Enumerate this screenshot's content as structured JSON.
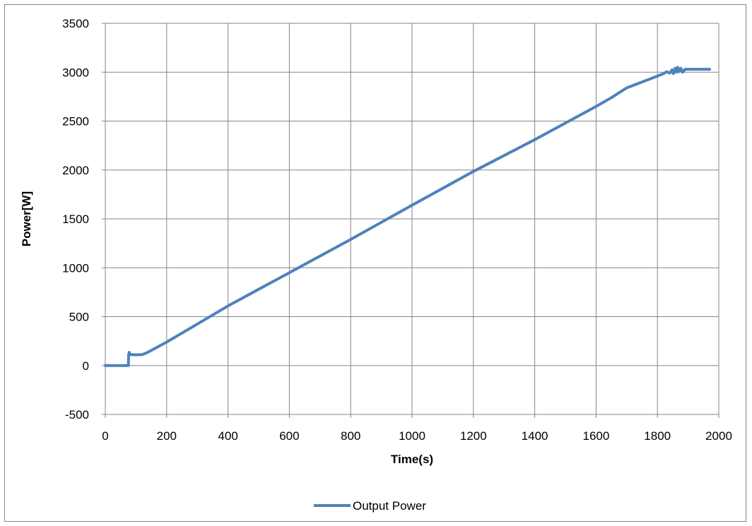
{
  "chart_data": {
    "type": "line",
    "title": "",
    "xlabel": "Time(s)",
    "ylabel": "Power[W]",
    "xlim": [
      0,
      2000
    ],
    "ylim": [
      -500,
      3500
    ],
    "x_ticks": [
      0,
      200,
      400,
      600,
      800,
      1000,
      1200,
      1400,
      1600,
      1800,
      2000
    ],
    "y_ticks": [
      -500,
      0,
      500,
      1000,
      1500,
      2000,
      2500,
      3000,
      3500
    ],
    "grid": true,
    "legend_position": "bottom",
    "series": [
      {
        "name": "Output Power",
        "color": "#4f81bd",
        "points": [
          [
            0,
            0
          ],
          [
            75,
            0
          ],
          [
            76,
            110
          ],
          [
            78,
            135
          ],
          [
            81,
            112
          ],
          [
            100,
            110
          ],
          [
            120,
            112
          ],
          [
            135,
            130
          ],
          [
            200,
            240
          ],
          [
            400,
            610
          ],
          [
            600,
            950
          ],
          [
            800,
            1290
          ],
          [
            1000,
            1640
          ],
          [
            1200,
            1985
          ],
          [
            1400,
            2310
          ],
          [
            1600,
            2650
          ],
          [
            1650,
            2740
          ],
          [
            1700,
            2840
          ],
          [
            1750,
            2900
          ],
          [
            1800,
            2960
          ],
          [
            1820,
            2985
          ],
          [
            1830,
            3005
          ],
          [
            1840,
            2990
          ],
          [
            1848,
            3025
          ],
          [
            1852,
            2985
          ],
          [
            1858,
            3040
          ],
          [
            1862,
            3000
          ],
          [
            1866,
            3050
          ],
          [
            1870,
            3005
          ],
          [
            1876,
            3040
          ],
          [
            1882,
            3000
          ],
          [
            1890,
            3030
          ],
          [
            1970,
            3030
          ]
        ]
      }
    ]
  }
}
